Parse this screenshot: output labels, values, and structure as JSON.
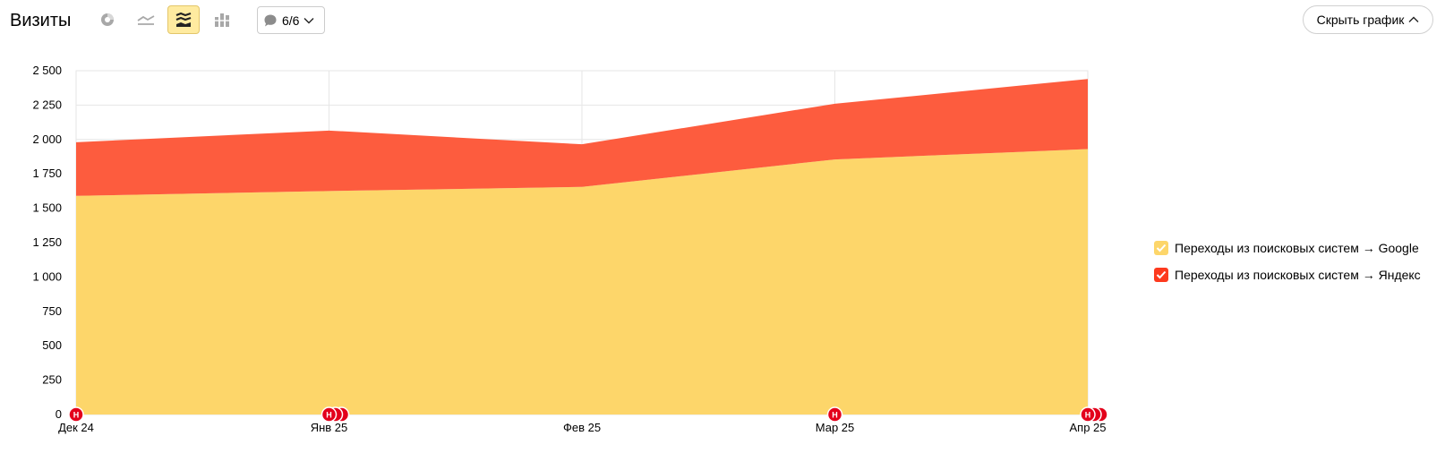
{
  "header": {
    "title": "Визиты",
    "annotations_count": "6/6",
    "hide_chart_label": "Скрыть график"
  },
  "toolbar": {
    "chart_types": [
      {
        "name": "pie-chart-icon",
        "active": false
      },
      {
        "name": "line-chart-icon",
        "active": false
      },
      {
        "name": "stacked-area-icon",
        "active": true
      },
      {
        "name": "bar-chart-icon",
        "active": false
      }
    ]
  },
  "colors": {
    "google": "#fdd66a",
    "yandex": "#fd5c3e",
    "marker": "#e3001b",
    "active_button": "#ffeba0"
  },
  "legend": {
    "items": [
      {
        "label": "Переходы из поисковых систем → Google",
        "color": "#fdd66a"
      },
      {
        "label": "Переходы из поисковых систем → Яндекс",
        "color": "#fd5c3e"
      }
    ]
  },
  "chart_data": {
    "type": "area",
    "stacked": true,
    "categories": [
      "Дек 24",
      "Янв 25",
      "Фев 25",
      "Мар 25",
      "Апр 25"
    ],
    "series": [
      {
        "name": "Переходы из поисковых систем → Google",
        "values": [
          1590,
          1625,
          1655,
          1855,
          1930
        ]
      },
      {
        "name": "Переходы из поисковых систем → Яндекс",
        "values": [
          390,
          440,
          310,
          405,
          510
        ]
      }
    ],
    "ylim": [
      0,
      2500
    ],
    "yticks": [
      0,
      250,
      500,
      750,
      1000,
      1250,
      1500,
      1750,
      2000,
      2250,
      2500
    ],
    "ytick_labels": [
      "0",
      "250",
      "500",
      "750",
      "1 000",
      "1 250",
      "1 500",
      "1 750",
      "2 000",
      "2 250",
      "2 500"
    ],
    "grid": true,
    "legend_position": "right",
    "annotation_markers": [
      {
        "category": "Дек 24",
        "label": "Н",
        "count": 1
      },
      {
        "category": "Янв 25",
        "label": "Н",
        "count": 3
      },
      {
        "category": "Мар 25",
        "label": "Н",
        "count": 1
      },
      {
        "category": "Апр 25",
        "label": "Н",
        "count": 3
      }
    ]
  }
}
